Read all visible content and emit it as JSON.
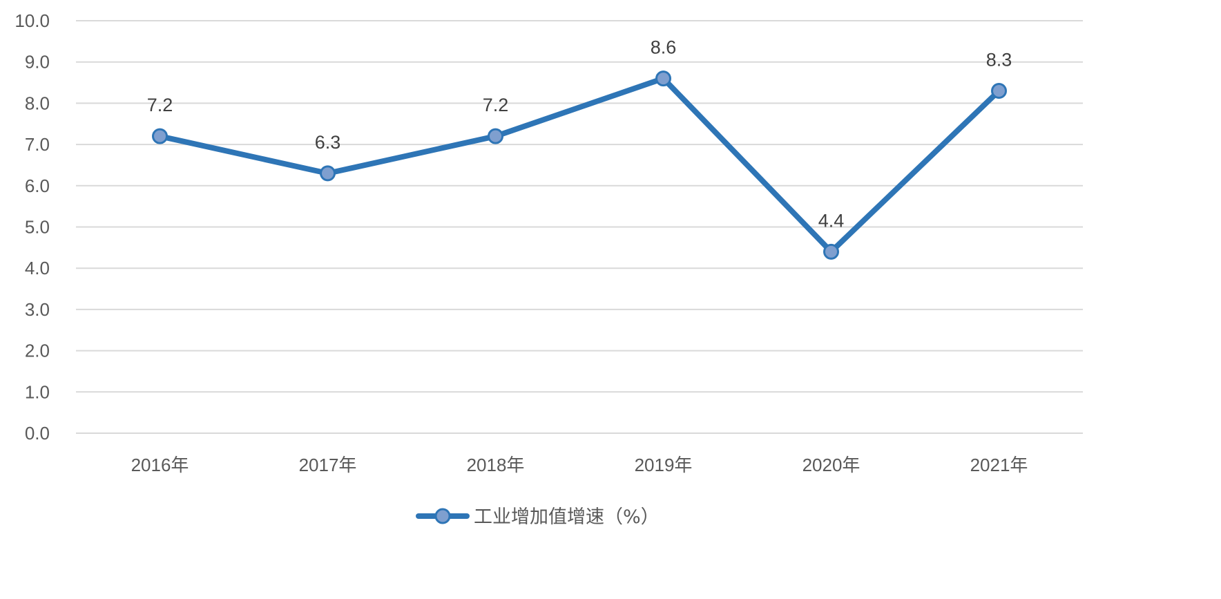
{
  "chart_data": {
    "type": "line",
    "title": "",
    "xlabel": "",
    "ylabel": "",
    "categories": [
      "2016年",
      "2017年",
      "2018年",
      "2019年",
      "2020年",
      "2021年"
    ],
    "series": [
      {
        "name": "工业增加值增速（%）",
        "values": [
          7.2,
          6.3,
          7.2,
          8.6,
          4.4,
          8.3
        ],
        "data_labels": [
          "7.2",
          "6.3",
          "7.2",
          "8.6",
          "4.4",
          "8.3"
        ],
        "color": "#2e75b6",
        "marker_color": "#7f9fcf"
      }
    ],
    "ylim": [
      0,
      10
    ],
    "yticks": [
      "0.0",
      "1.0",
      "2.0",
      "3.0",
      "4.0",
      "5.0",
      "6.0",
      "7.0",
      "8.0",
      "9.0",
      "10.0"
    ],
    "grid": true,
    "legend": "bottom"
  }
}
